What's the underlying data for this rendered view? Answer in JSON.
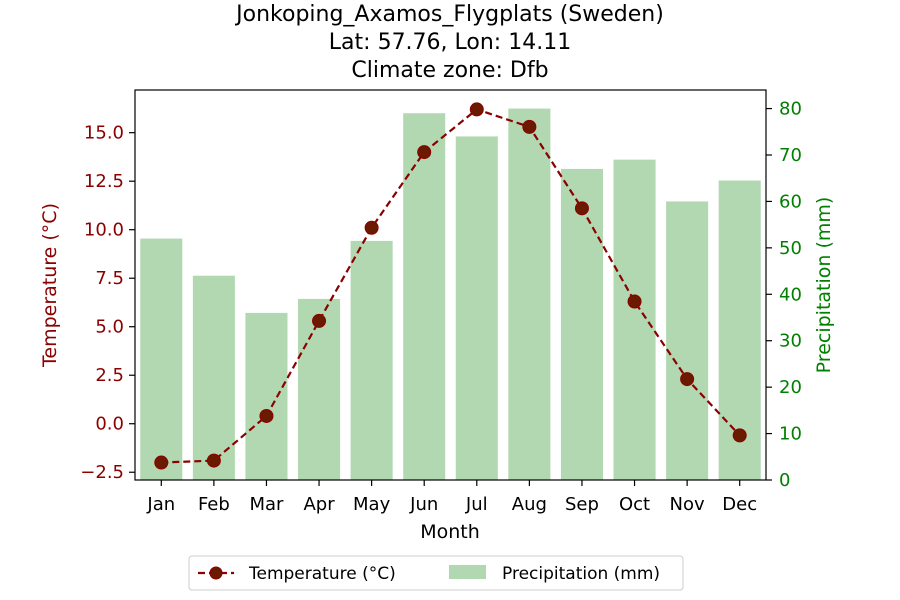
{
  "chart_data": {
    "type": "bar+line",
    "title_lines": [
      "Jonkoping_Axamos_Flygplats (Sweden)",
      "Lat: 57.76, Lon: 14.11",
      "Climate zone: Dfb"
    ],
    "xlabel": "Month",
    "y_left_label": "Temperature (°C)",
    "y_right_label": "Precipitation (mm)",
    "categories": [
      "Jan",
      "Feb",
      "Mar",
      "Apr",
      "May",
      "Jun",
      "Jul",
      "Aug",
      "Sep",
      "Oct",
      "Nov",
      "Dec"
    ],
    "y_left_ticks": [
      "−2.5",
      "0.0",
      "2.5",
      "5.0",
      "7.5",
      "10.0",
      "12.5",
      "15.0"
    ],
    "y_left_tick_values": [
      -2.5,
      0,
      2.5,
      5,
      7.5,
      10,
      12.5,
      15
    ],
    "y_left_lim": [
      -2.9,
      17.2
    ],
    "y_right_ticks": [
      "0",
      "10",
      "20",
      "30",
      "40",
      "50",
      "60",
      "70",
      "80"
    ],
    "y_right_tick_values": [
      0,
      10,
      20,
      30,
      40,
      50,
      60,
      70,
      80
    ],
    "y_right_lim": [
      0,
      84
    ],
    "series": [
      {
        "name": "Temperature (°C)",
        "kind": "line",
        "axis": "left",
        "values": [
          -2.0,
          -1.9,
          0.4,
          5.3,
          10.1,
          14.0,
          16.2,
          15.3,
          11.1,
          6.3,
          2.3,
          -0.6
        ]
      },
      {
        "name": "Precipitation (mm)",
        "kind": "bar",
        "axis": "right",
        "values": [
          52,
          44,
          36,
          39,
          51.5,
          79,
          74,
          80,
          67,
          69,
          60,
          64.5
        ]
      }
    ],
    "legend_position": "bottom-center",
    "colors": {
      "temperature_line": "#8b0000",
      "temperature_marker": "#6b1a00",
      "precip_bar": "#b2d8b2",
      "left_axis_text": "#8b0000",
      "right_axis_text": "#008000"
    }
  }
}
